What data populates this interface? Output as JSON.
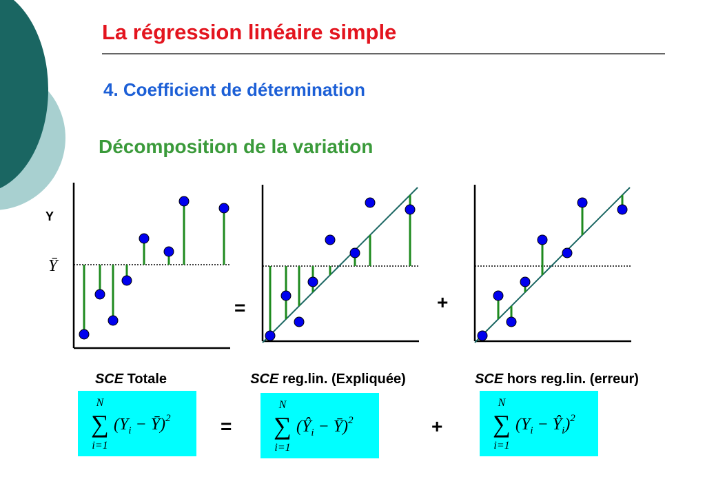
{
  "header": {
    "title": "La régression linéaire simple",
    "subtitle": "4. Coefficient de détermination",
    "heading": "Décomposition de la variation"
  },
  "diagram": {
    "y_label": "Y",
    "mean_label": "Ȳ",
    "equals": "=",
    "plus": "+"
  },
  "labels": [
    {
      "em": "SCE",
      "text": "Totale"
    },
    {
      "em": "SCE",
      "text": "reg.lin. (Expliquée)"
    },
    {
      "em": "SCE",
      "text": "hors reg.lin. (erreur)"
    }
  ],
  "formulas": [
    {
      "sum": "∑",
      "upper": "N",
      "lower": "i=1",
      "body": [
        "(Y",
        "i",
        " − Ȳ)"
      ],
      "exp": "2"
    },
    {
      "sum": "∑",
      "upper": "N",
      "lower": "i=1",
      "body": [
        "(Ŷ",
        "i",
        " − Ȳ)"
      ],
      "exp": "2"
    },
    {
      "sum": "∑",
      "upper": "N",
      "lower": "i=1",
      "body": [
        "(Y",
        "i",
        " − Ŷ",
        "i",
        ")"
      ],
      "exp": "2"
    }
  ],
  "formula_ops": {
    "equals": "=",
    "plus": "+"
  }
}
